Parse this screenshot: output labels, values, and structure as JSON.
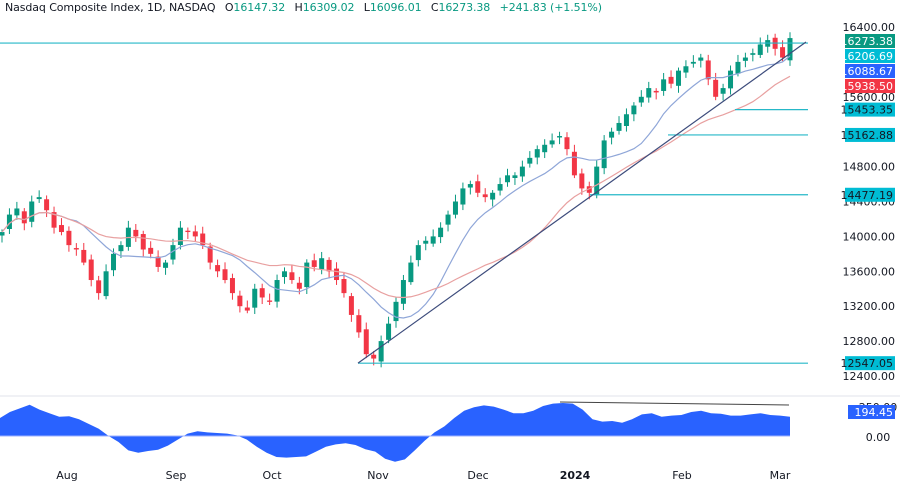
{
  "header": {
    "title": "Nasdaq Composite Index, 1D, NASDAQ",
    "open_prefix": "O",
    "open": "16147.32",
    "high_prefix": "H",
    "high": "16309.02",
    "low_prefix": "L",
    "low": "16096.01",
    "close_prefix": "C",
    "close": "16273.38",
    "change": "+241.83 (+1.51%)"
  },
  "colors": {
    "up": "#089981",
    "down": "#f23645",
    "ma_fast": "#8fa6d8",
    "ma_slow": "#e8a0a0",
    "hline": "#26b8c8",
    "trend": "#3d4c7c",
    "osc": "#2962ff"
  },
  "price_axis": {
    "ticks": [
      "16400.00",
      "15600.00",
      "14800.00",
      "14400.00",
      "14000.00",
      "13600.00",
      "13200.00",
      "12800.00",
      "12400.00"
    ]
  },
  "price_labels": [
    {
      "value": "16273.38",
      "color": "#089981"
    },
    {
      "value": "16206.69",
      "color": "#00bcd4"
    },
    {
      "value": "16088.67",
      "color": "#2962ff"
    },
    {
      "value": "15938.50",
      "color": "#f23645"
    }
  ],
  "level_labels": [
    "15453.35",
    "15162.88",
    "14477.19",
    "12547.05"
  ],
  "oscillator": {
    "value": "194.45",
    "ticks": [
      "250.00",
      "0.00"
    ]
  },
  "time_axis": [
    "Aug",
    "Sep",
    "Oct",
    "Nov",
    "Dec",
    "2024",
    "Feb",
    "Mar"
  ],
  "chart_data": {
    "type": "candlestick",
    "title": "Nasdaq Composite Index, 1D, NASDAQ",
    "ylim": [
      12300,
      16500
    ],
    "y_ticks": [
      12400,
      12800,
      13200,
      13600,
      14000,
      14400,
      14800,
      15600,
      16400
    ],
    "x_labels": [
      "Aug",
      "Sep",
      "Oct",
      "Nov",
      "Dec",
      "2024",
      "Feb",
      "Mar"
    ],
    "last_ohlc": {
      "open": 16147.32,
      "high": 16309.02,
      "low": 16096.01,
      "close": 16273.38,
      "change": 241.83,
      "change_pct": 1.51
    },
    "moving_averages": {
      "fast_last": 16206.69,
      "mid_last": 16088.67,
      "slow_last": 15938.5
    },
    "horizontal_levels": [
      16273.38,
      15453.35,
      15162.88,
      14477.19,
      12547.05
    ],
    "trendline": {
      "from": [
        360,
        12547
      ],
      "to": [
        808,
        16300
      ]
    },
    "approx_closes": [
      14050,
      14250,
      14320,
      14150,
      14400,
      14450,
      14300,
      14100,
      14050,
      13900,
      13850,
      13700,
      13500,
      13350,
      13600,
      13800,
      13900,
      14100,
      14000,
      13850,
      13800,
      13650,
      13700,
      13900,
      14100,
      14050,
      14000,
      13900,
      13700,
      13600,
      13500,
      13350,
      13200,
      13150,
      13400,
      13300,
      13250,
      13500,
      13600,
      13500,
      13400,
      13700,
      13650,
      13750,
      13600,
      13500,
      13350,
      13100,
      12900,
      12650,
      12600,
      12800,
      13000,
      13250,
      13500,
      13700,
      13900,
      13950,
      14000,
      14100,
      14250,
      14400,
      14550,
      14600,
      14500,
      14450,
      14500,
      14600,
      14700,
      14700,
      14800,
      14900,
      15000,
      15050,
      15100,
      15150,
      15000,
      14700,
      14550,
      14500,
      14800,
      15100,
      15200,
      15300,
      15400,
      15500,
      15600,
      15700,
      15650,
      15800,
      15750,
      15900,
      15950,
      16000,
      16050,
      15800,
      15600,
      15700,
      15900,
      16000,
      16050,
      16100,
      16200,
      16250,
      16150,
      16050,
      16273
    ]
  }
}
